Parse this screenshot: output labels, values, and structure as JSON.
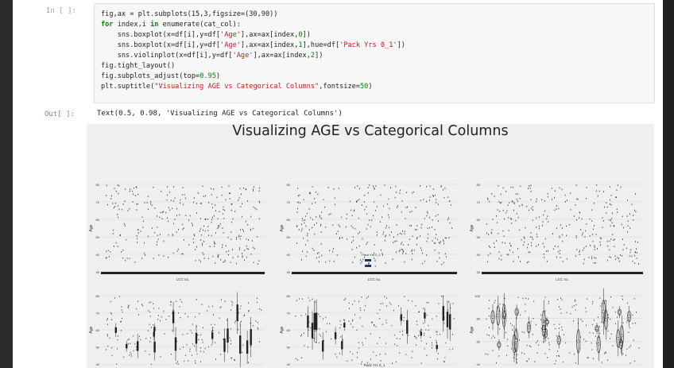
{
  "input_prompt": "In [ ]:",
  "output_prompt": "Out[ ]:",
  "code": {
    "line1": "fig,ax = plt.subplots(15,3,figsize=(30,90))",
    "line2_kw1": "for",
    "line2_mid": " index,i ",
    "line2_kw2": "in",
    "line2_end": " enumerate(cat_col):",
    "line3_a": "    sns.boxplot(x=df[i],y=df[",
    "line3_s1": "'Age'",
    "line3_b": "],ax=ax[index,",
    "line3_n": "0",
    "line3_c": "])",
    "line4_a": "    sns.boxplot(x=df[i],y=df[",
    "line4_s1": "'Age'",
    "line4_b": "],ax=ax[index,",
    "line4_n": "1",
    "line4_c": "],hue=df[",
    "line4_s2": "'Pack Yrs 0_1'",
    "line4_d": "])",
    "line5_a": "    sns.violinplot(x=df[i],y=df[",
    "line5_s1": "'Age'",
    "line5_b": "],ax=ax[index,",
    "line5_n": "2",
    "line5_c": "])",
    "line6": "fig.tight_layout()",
    "line7_a": "fig.subplots_adjust(top=",
    "line7_n": "0.95",
    "line7_b": ")",
    "line8_a": "plt.suptitle(",
    "line8_s": "\"Visualizing AGE vs Categorical Columns\"",
    "line8_b": ",fontsize=",
    "line8_n": "50",
    "line8_c": ")"
  },
  "output_text": "Text(0.5, 0.98, 'Visualizing AGE vs Categorical Columns')",
  "figure": {
    "suptitle": "Visualizing AGE vs Categorical Columns",
    "colors": {
      "background": "#efefef",
      "marks": "#222222",
      "legend_0": "#1f3a5f",
      "legend_1": "#1f3a5f"
    },
    "row1": {
      "xlabel": "LCC no.",
      "ylabel": "Age",
      "yticks": [
        "80",
        "70",
        "60",
        "50",
        "40",
        "30"
      ],
      "legend": {
        "title": "Pack Yrs 0_1",
        "items": [
          "0",
          "1"
        ]
      }
    },
    "row2": {
      "xlabel": "Pack Yrs 0_1",
      "ylabel": "Age",
      "yticks_left": [
        "80",
        "70",
        "60",
        "50",
        "40"
      ],
      "yticks_right": [
        "100",
        "80",
        "60",
        "40"
      ]
    }
  }
}
